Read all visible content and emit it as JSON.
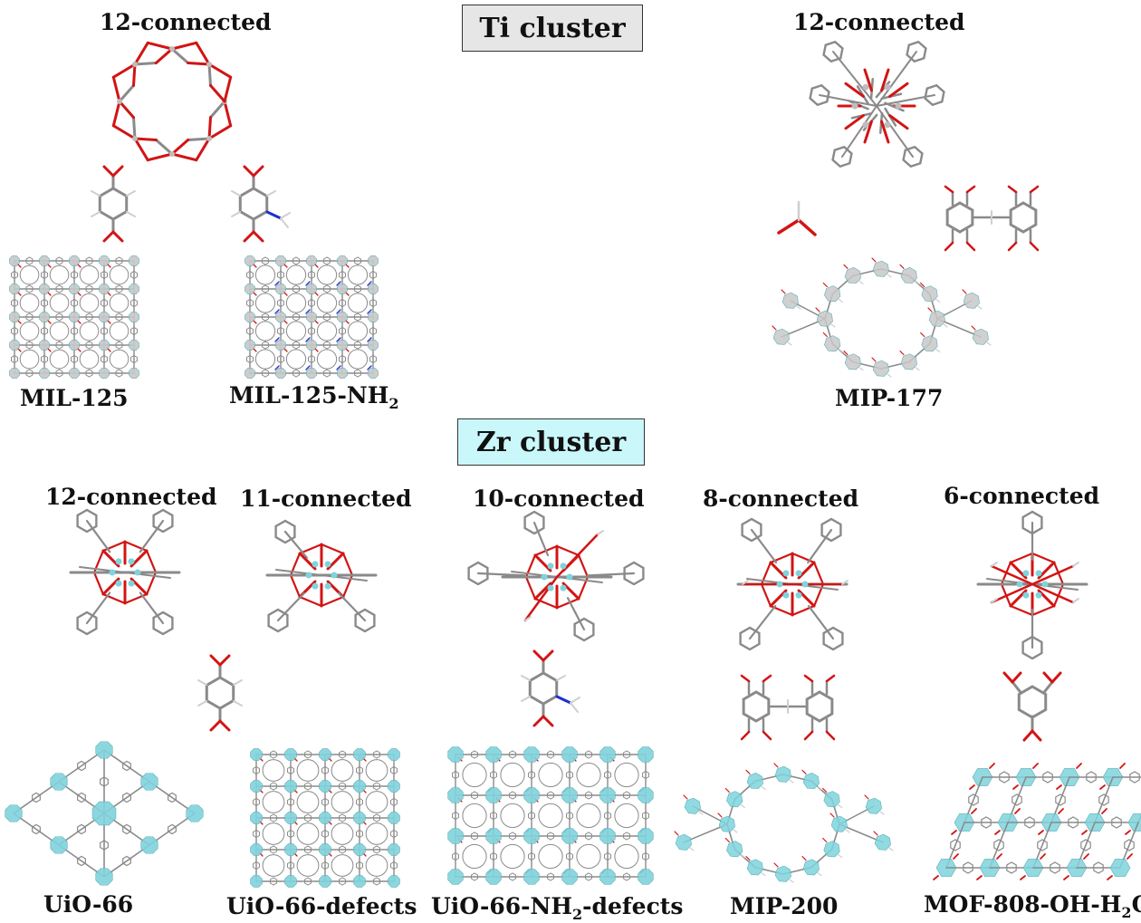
{
  "sections": {
    "ti": {
      "header": "Ti cluster",
      "left_connectivity": "12-connected",
      "right_connectivity": "12-connected",
      "materials": [
        {
          "name": "MIL-125"
        },
        {
          "name": "MIL-125-NH",
          "sub": "2"
        },
        {
          "name": "MIP-177"
        }
      ]
    },
    "zr": {
      "header": "Zr cluster",
      "connectivities": [
        "12-connected",
        "11-connected",
        "10-connected",
        "8-connected",
        "6-connected"
      ],
      "materials": [
        {
          "name": "UiO-66"
        },
        {
          "name": "UiO-66-defects"
        },
        {
          "name": "UiO-66-NH",
          "sub": "2",
          "suffix": "-defects"
        },
        {
          "name": "MIP-200"
        },
        {
          "name": "MOF-808-OH-H",
          "sub": "2",
          "suffix": "O"
        }
      ]
    }
  },
  "colors": {
    "carbon": "#8a8a8a",
    "oxygen": "#d21414",
    "nitrogen": "#1f2fd0",
    "hydrogen": "#cfcfcf",
    "ti_node": "#c8c8c8",
    "zr_node": "#7fd3dc",
    "ti_header_bg": "#e6e6e6",
    "zr_header_bg": "#c9f7fa"
  }
}
